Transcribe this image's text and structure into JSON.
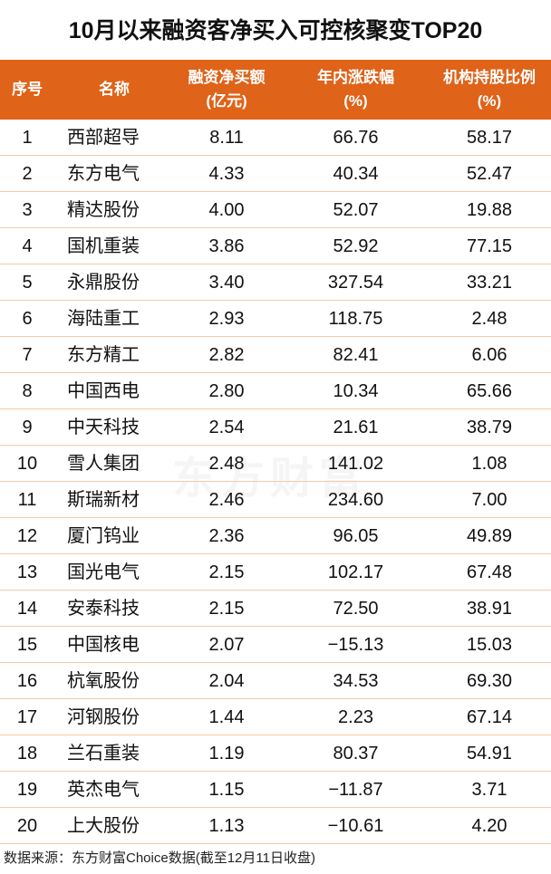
{
  "title": "10月以来融资客净买入可控核聚变TOP20",
  "watermark": "东方财富",
  "columns": [
    {
      "line1": "序号",
      "line2": ""
    },
    {
      "line1": "名称",
      "line2": ""
    },
    {
      "line1": "融资净买额",
      "line2": "(亿元)"
    },
    {
      "line1": "年内涨跌幅",
      "line2": "(%)"
    },
    {
      "line1": "机构持股比例",
      "line2": "(%)"
    }
  ],
  "rows": [
    [
      "1",
      "西部超导",
      "8.11",
      "66.76",
      "58.17"
    ],
    [
      "2",
      "东方电气",
      "4.33",
      "40.34",
      "52.47"
    ],
    [
      "3",
      "精达股份",
      "4.00",
      "52.07",
      "19.88"
    ],
    [
      "4",
      "国机重装",
      "3.86",
      "52.92",
      "77.15"
    ],
    [
      "5",
      "永鼎股份",
      "3.40",
      "327.54",
      "33.21"
    ],
    [
      "6",
      "海陆重工",
      "2.93",
      "118.75",
      "2.48"
    ],
    [
      "7",
      "东方精工",
      "2.82",
      "82.41",
      "6.06"
    ],
    [
      "8",
      "中国西电",
      "2.80",
      "10.34",
      "65.66"
    ],
    [
      "9",
      "中天科技",
      "2.54",
      "21.61",
      "38.79"
    ],
    [
      "10",
      "雪人集团",
      "2.48",
      "141.02",
      "1.08"
    ],
    [
      "11",
      "斯瑞新材",
      "2.46",
      "234.60",
      "7.00"
    ],
    [
      "12",
      "厦门钨业",
      "2.36",
      "96.05",
      "49.89"
    ],
    [
      "13",
      "国光电气",
      "2.15",
      "102.17",
      "67.48"
    ],
    [
      "14",
      "安泰科技",
      "2.15",
      "72.50",
      "38.91"
    ],
    [
      "15",
      "中国核电",
      "2.07",
      "−15.13",
      "15.03"
    ],
    [
      "16",
      "杭氧股份",
      "2.04",
      "34.53",
      "69.30"
    ],
    [
      "17",
      "河钢股份",
      "1.44",
      "2.23",
      "67.14"
    ],
    [
      "18",
      "兰石重装",
      "1.19",
      "80.37",
      "54.91"
    ],
    [
      "19",
      "英杰电气",
      "1.15",
      "−11.87",
      "3.71"
    ],
    [
      "20",
      "上大股份",
      "1.13",
      "−10.61",
      "4.20"
    ]
  ],
  "footer": "数据来源：东方财富Choice数据(截至12月11日收盘)",
  "colors": {
    "header_bg": "#DF6319",
    "row_divider": "#F6C9A6"
  }
}
